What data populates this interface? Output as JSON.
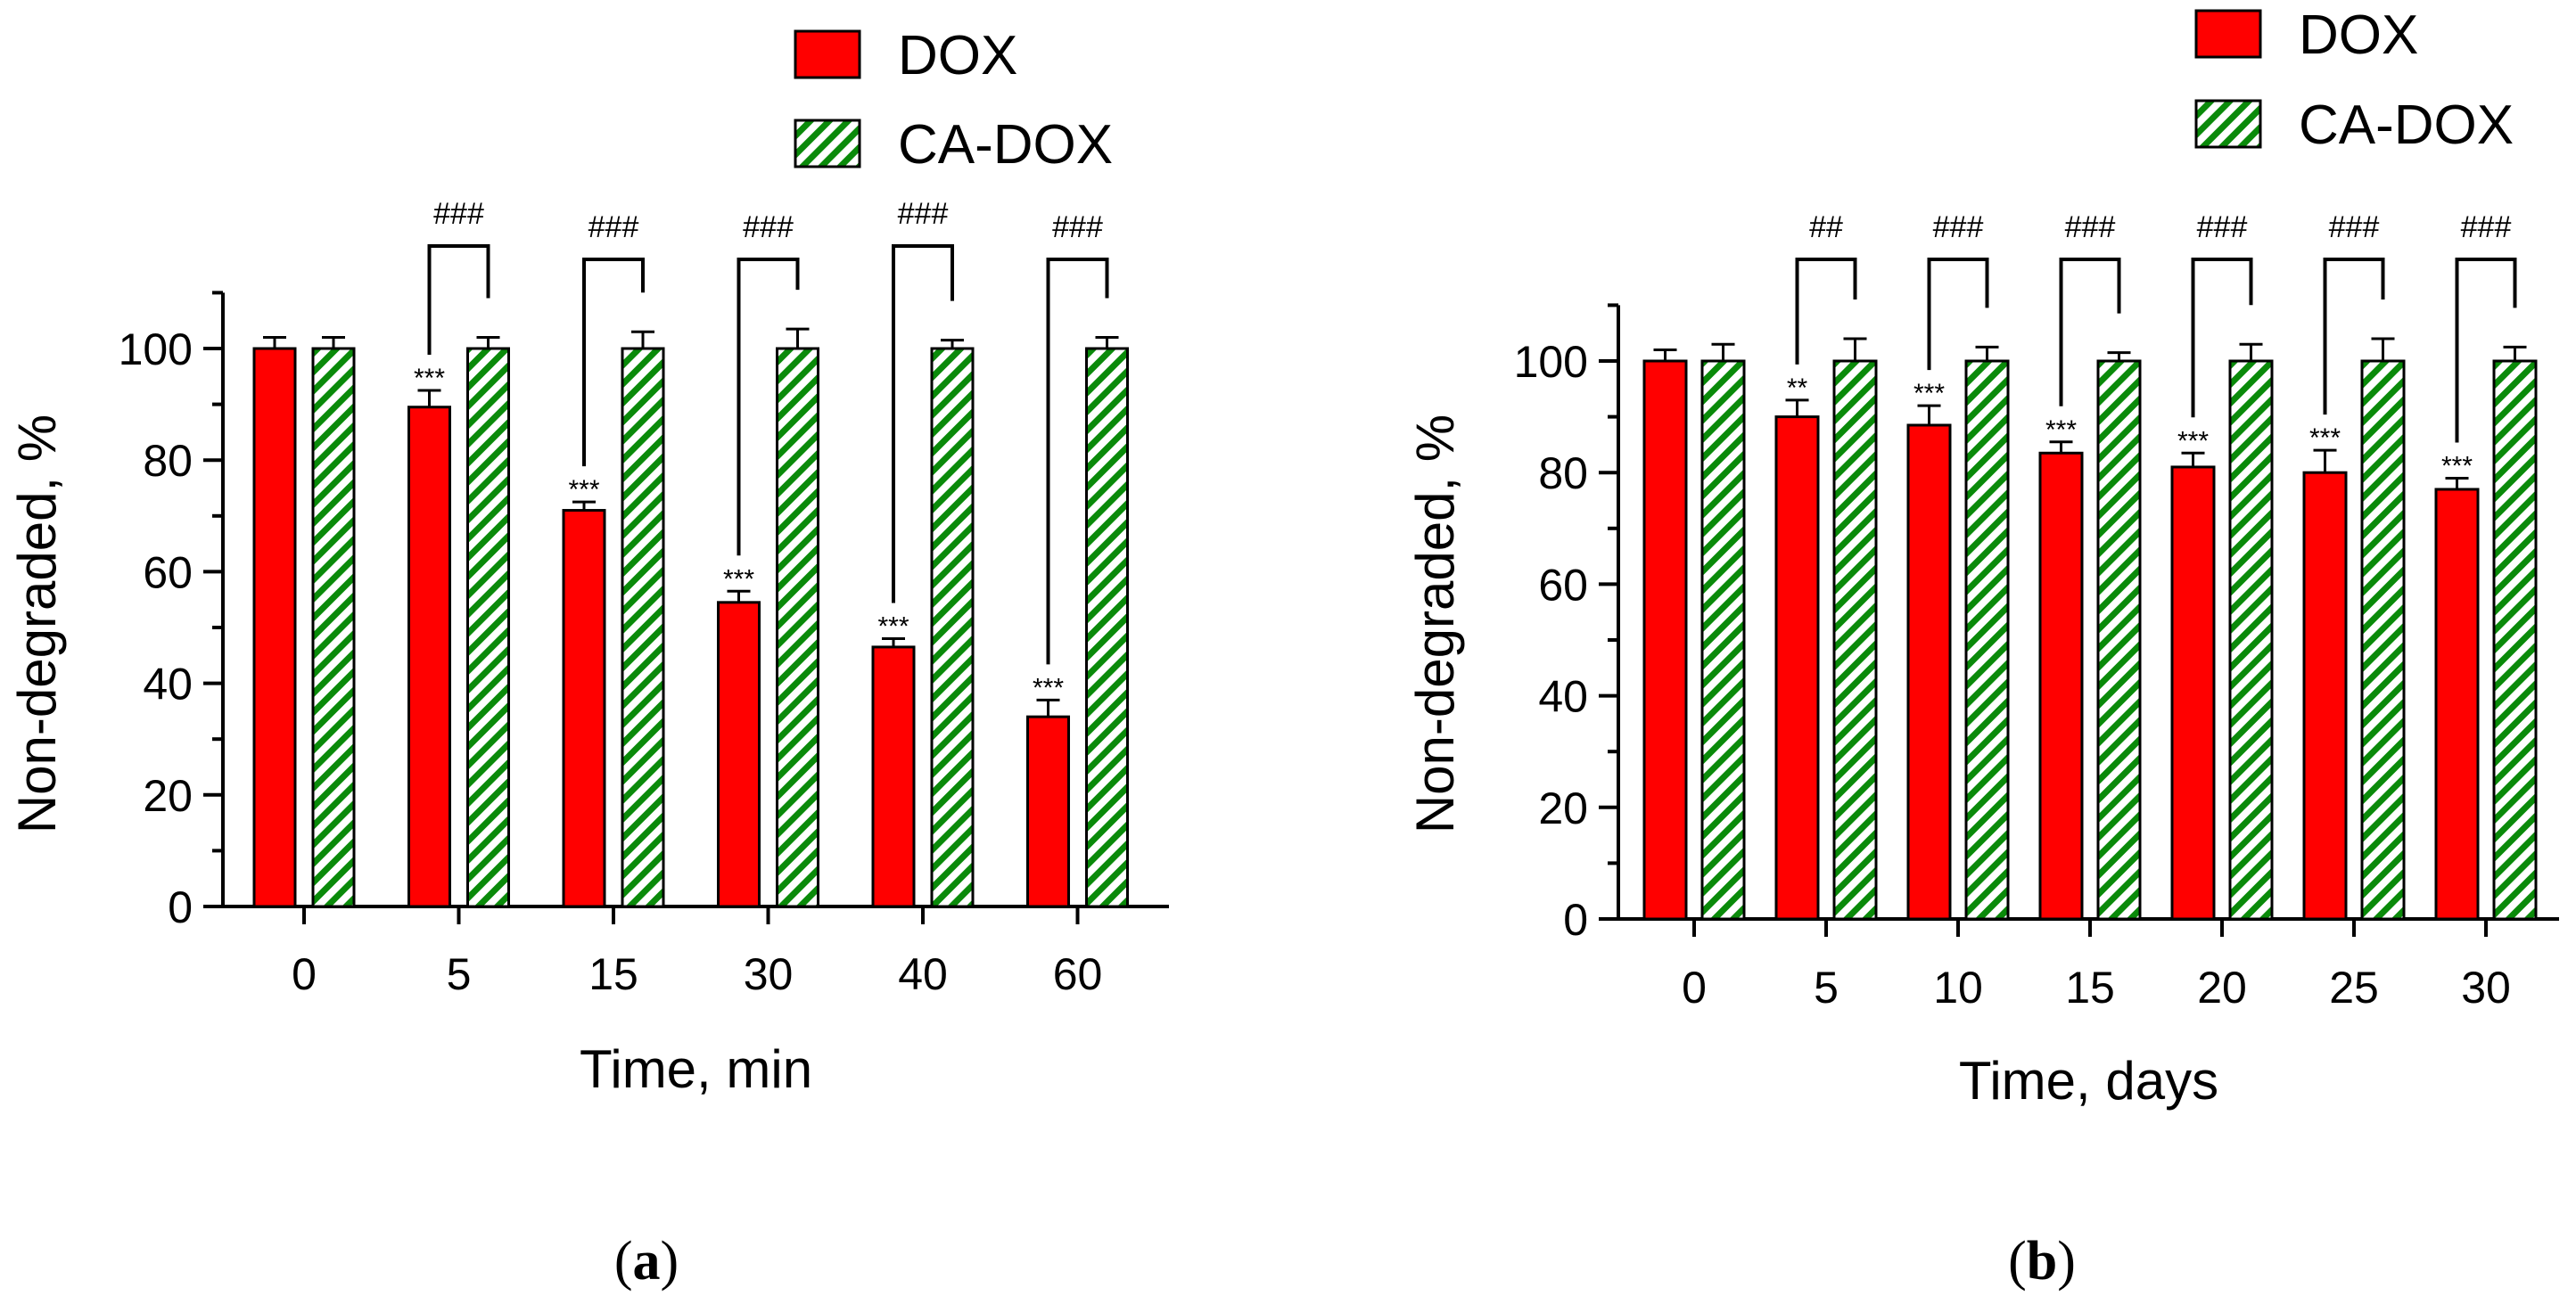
{
  "chart_data": [
    {
      "type": "bar",
      "panel_label": "a",
      "xlabel": "Time, min",
      "ylabel": "Non-degraded, %",
      "ylim": [
        0,
        110
      ],
      "yticks": [
        0,
        20,
        40,
        60,
        80,
        100
      ],
      "y_minor_step": 10,
      "categories": [
        "0",
        "5",
        "15",
        "30",
        "40",
        "60"
      ],
      "legend_position": "top-right",
      "series": [
        {
          "name": "DOX",
          "color": "#ff0000",
          "pattern": "solid",
          "values": [
            100,
            89.5,
            71,
            54.5,
            46.5,
            34
          ],
          "errors": [
            2,
            3,
            1.5,
            2,
            1.5,
            3
          ]
        },
        {
          "name": "CA-DOX",
          "color": "#0a8a0a",
          "pattern": "hatched",
          "values": [
            100,
            100,
            100,
            100,
            100,
            100
          ],
          "errors": [
            2,
            2,
            3,
            3.5,
            1.5,
            2
          ]
        }
      ],
      "dox_significance": [
        "",
        "***",
        "***",
        "***",
        "***",
        "***"
      ],
      "pair_significance": [
        "",
        "###",
        "###",
        "###",
        "###",
        "###"
      ]
    },
    {
      "type": "bar",
      "panel_label": "b",
      "xlabel": "Time, days",
      "ylabel": "Non-degraded, %",
      "ylim": [
        0,
        110
      ],
      "yticks": [
        0,
        20,
        40,
        60,
        80,
        100
      ],
      "y_minor_step": 10,
      "categories": [
        "0",
        "5",
        "10",
        "15",
        "20",
        "25",
        "30"
      ],
      "legend_position": "top-right",
      "series": [
        {
          "name": "DOX",
          "color": "#ff0000",
          "pattern": "solid",
          "values": [
            100,
            90,
            88.5,
            83.5,
            81,
            80,
            77
          ],
          "errors": [
            2,
            3,
            3.5,
            2,
            2.5,
            4,
            2
          ]
        },
        {
          "name": "CA-DOX",
          "color": "#0a8a0a",
          "pattern": "hatched",
          "values": [
            100,
            100,
            100,
            100,
            100,
            100,
            100
          ],
          "errors": [
            3,
            4,
            2.5,
            1.5,
            3,
            4,
            2.5
          ]
        }
      ],
      "dox_significance": [
        "",
        "**",
        "***",
        "***",
        "***",
        "***",
        "***"
      ],
      "pair_significance": [
        "",
        "##",
        "###",
        "###",
        "###",
        "###",
        "###"
      ]
    }
  ]
}
